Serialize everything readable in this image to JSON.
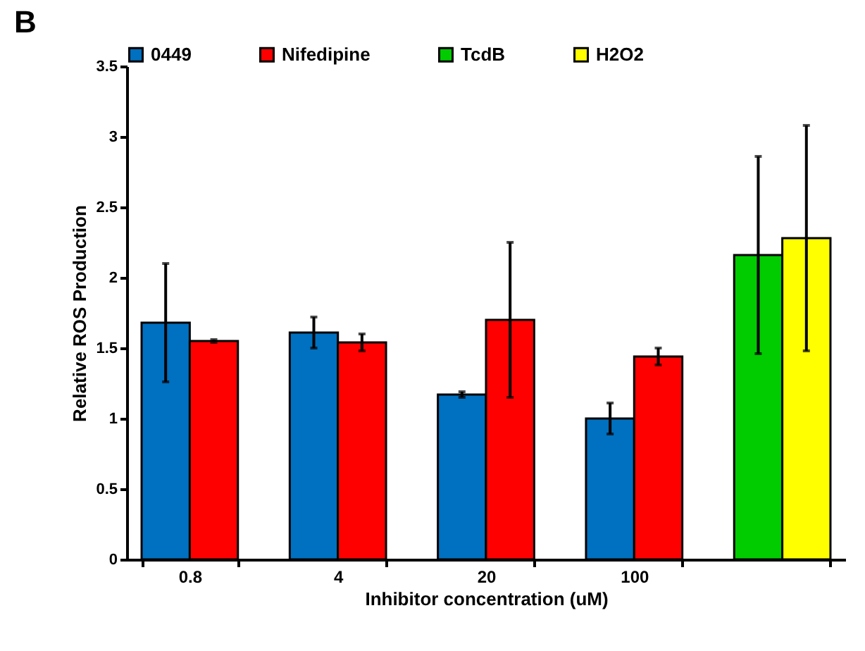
{
  "chart_data": {
    "type": "bar",
    "annotations": [
      "B"
    ],
    "xlabel": "Inhibitor concentration (uM)",
    "ylabel": "Relative ROS Production",
    "categories": [
      "0.8",
      "4",
      "20",
      "100",
      null
    ],
    "series": [
      {
        "name": "0449",
        "color": "#0070c0",
        "values": [
          1.68,
          1.61,
          1.17,
          1.0,
          null
        ],
        "errors": [
          0.42,
          0.11,
          0.02,
          0.11,
          null
        ]
      },
      {
        "name": "Nifedipine",
        "color": "#ff0000",
        "values": [
          1.55,
          1.54,
          1.7,
          1.44,
          null
        ],
        "errors": [
          0.01,
          0.06,
          0.55,
          0.06,
          null
        ]
      },
      {
        "name": "TcdB",
        "color": "#00cc00",
        "values": [
          null,
          null,
          null,
          null,
          2.16
        ],
        "errors": [
          null,
          null,
          null,
          null,
          0.7
        ]
      },
      {
        "name": "H2O2",
        "color": "#ffff00",
        "values": [
          null,
          null,
          null,
          null,
          2.28
        ],
        "errors": [
          null,
          null,
          null,
          null,
          0.8
        ]
      }
    ],
    "ylim": [
      0,
      3.5
    ],
    "yticks": [
      0,
      0.5,
      1,
      1.5,
      2,
      2.5,
      3,
      3.5
    ],
    "grid": false,
    "legend": "top"
  }
}
